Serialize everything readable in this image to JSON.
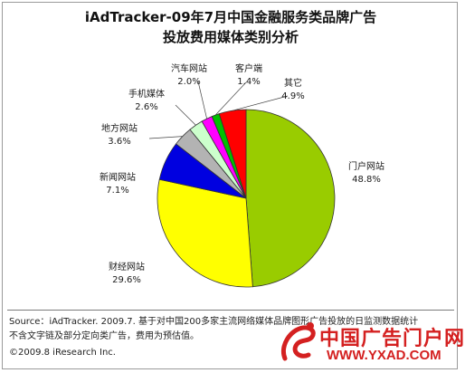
{
  "title_lines": [
    "iAdTracker-09年7月中国金融服务类品牌广告",
    "投放费用媒体类别分析"
  ],
  "chart_data": {
    "type": "pie",
    "title": "iAdTracker-09年7月中国金融服务类品牌广告投放费用媒体类别分析",
    "unit": "%",
    "slices": [
      {
        "label": "门户网站",
        "value": 48.8,
        "value_text": "48.8%",
        "color": "#99cc00"
      },
      {
        "label": "财经网站",
        "value": 29.6,
        "value_text": "29.6%",
        "color": "#ffff00"
      },
      {
        "label": "新闻网站",
        "value": 7.1,
        "value_text": "7.1%",
        "color": "#0000e0"
      },
      {
        "label": "地方网站",
        "value": 3.6,
        "value_text": "3.6%",
        "color": "#b3b3b3"
      },
      {
        "label": "手机媒体",
        "value": 2.6,
        "value_text": "2.6%",
        "color": "#ccffcc"
      },
      {
        "label": "汽车网站",
        "value": 2.0,
        "value_text": "2.0%",
        "color": "#ff00ff"
      },
      {
        "label": "客户端",
        "value": 1.4,
        "value_text": "1.4%",
        "color": "#00c000"
      },
      {
        "label": "其它",
        "value": 4.9,
        "value_text": "4.9%",
        "color": "#ff0000"
      }
    ]
  },
  "footer": {
    "source_line1": "Source：iAdTracker. 2009.7. 基于对中国200多家主流网络媒体品牌图形广告投放的日监测数据统计",
    "source_line2": "不含文字链及部分定向类广告，费用为预估值。",
    "copyright": "©2009.8 iResearch Inc."
  },
  "watermark": {
    "text_cn": "中国广告门户网",
    "url": "WWW.YXAD.COM",
    "logo_color": "#d42020"
  }
}
